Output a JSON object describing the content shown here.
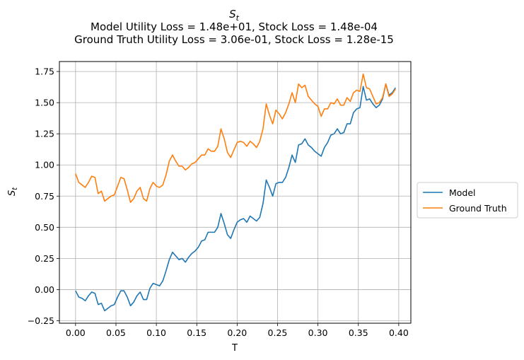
{
  "chart_data": {
    "type": "line",
    "title_symbol": "S",
    "title_subscript": "t",
    "subtitle_lines": [
      "Model Utility Loss = 1.48e+01, Stock Loss = 1.48e-04",
      "Ground Truth Utility Loss = 3.06e-01, Stock Loss = 1.28e-15"
    ],
    "xlabel": "T",
    "ylabel_symbol": "S",
    "ylabel_subscript": "t",
    "xlim": [
      -0.02,
      0.415
    ],
    "ylim": [
      -0.27,
      1.83
    ],
    "xticks": [
      0.0,
      0.05,
      0.1,
      0.15,
      0.2,
      0.25,
      0.3,
      0.35,
      0.4
    ],
    "xtick_labels": [
      "0.00",
      "0.05",
      "0.10",
      "0.15",
      "0.20",
      "0.25",
      "0.30",
      "0.35",
      "0.40"
    ],
    "yticks": [
      -0.25,
      0.0,
      0.25,
      0.5,
      0.75,
      1.0,
      1.25,
      1.5,
      1.75
    ],
    "ytick_labels": [
      "−0.25",
      "0.00",
      "0.25",
      "0.50",
      "0.75",
      "1.00",
      "1.25",
      "1.50",
      "1.75"
    ],
    "grid": true,
    "legend_position": "outside-right",
    "x": [
      0.0,
      0.004,
      0.008,
      0.012,
      0.016,
      0.02,
      0.024,
      0.028,
      0.032,
      0.036,
      0.04,
      0.044,
      0.048,
      0.052,
      0.056,
      0.06,
      0.064,
      0.068,
      0.072,
      0.076,
      0.08,
      0.084,
      0.088,
      0.092,
      0.096,
      0.1,
      0.104,
      0.108,
      0.112,
      0.116,
      0.12,
      0.124,
      0.128,
      0.132,
      0.136,
      0.14,
      0.144,
      0.148,
      0.152,
      0.156,
      0.16,
      0.164,
      0.168,
      0.172,
      0.176,
      0.18,
      0.184,
      0.188,
      0.192,
      0.196,
      0.2,
      0.204,
      0.208,
      0.212,
      0.216,
      0.22,
      0.224,
      0.228,
      0.232,
      0.236,
      0.24,
      0.244,
      0.248,
      0.252,
      0.256,
      0.26,
      0.264,
      0.268,
      0.272,
      0.276,
      0.28,
      0.284,
      0.288,
      0.292,
      0.296,
      0.3,
      0.304,
      0.308,
      0.312,
      0.316,
      0.32,
      0.324,
      0.328,
      0.332,
      0.336,
      0.34,
      0.344,
      0.348,
      0.352,
      0.356,
      0.36,
      0.364,
      0.368,
      0.372,
      0.376,
      0.38,
      0.384,
      0.388,
      0.392,
      0.396
    ],
    "series": [
      {
        "name": "Model",
        "color": "#1f77b4",
        "values": [
          -0.01,
          -0.06,
          -0.07,
          -0.09,
          -0.05,
          -0.02,
          -0.03,
          -0.12,
          -0.11,
          -0.17,
          -0.15,
          -0.13,
          -0.12,
          -0.06,
          -0.01,
          -0.01,
          -0.06,
          -0.13,
          -0.1,
          -0.05,
          -0.02,
          -0.08,
          -0.08,
          0.01,
          0.05,
          0.04,
          0.03,
          0.07,
          0.15,
          0.24,
          0.3,
          0.27,
          0.24,
          0.25,
          0.22,
          0.26,
          0.29,
          0.31,
          0.34,
          0.39,
          0.4,
          0.46,
          0.46,
          0.46,
          0.5,
          0.61,
          0.53,
          0.44,
          0.41,
          0.48,
          0.54,
          0.56,
          0.57,
          0.54,
          0.59,
          0.57,
          0.55,
          0.58,
          0.69,
          0.88,
          0.82,
          0.75,
          0.85,
          0.86,
          0.86,
          0.9,
          0.98,
          1.08,
          1.02,
          1.16,
          1.17,
          1.21,
          1.16,
          1.14,
          1.11,
          1.09,
          1.07,
          1.14,
          1.18,
          1.24,
          1.25,
          1.29,
          1.25,
          1.26,
          1.33,
          1.33,
          1.42,
          1.45,
          1.46,
          1.63,
          1.52,
          1.53,
          1.49,
          1.46,
          1.48,
          1.53,
          1.65,
          1.56,
          1.58,
          1.62
        ]
      },
      {
        "name": "Ground Truth",
        "color": "#ff7f0e",
        "values": [
          0.93,
          0.86,
          0.84,
          0.82,
          0.86,
          0.91,
          0.9,
          0.77,
          0.79,
          0.71,
          0.73,
          0.75,
          0.76,
          0.83,
          0.9,
          0.89,
          0.8,
          0.7,
          0.73,
          0.79,
          0.82,
          0.73,
          0.71,
          0.81,
          0.86,
          0.83,
          0.82,
          0.84,
          0.92,
          1.03,
          1.08,
          1.03,
          0.99,
          0.99,
          0.96,
          0.98,
          1.01,
          1.02,
          1.05,
          1.08,
          1.08,
          1.13,
          1.11,
          1.11,
          1.15,
          1.29,
          1.21,
          1.1,
          1.06,
          1.12,
          1.18,
          1.19,
          1.18,
          1.15,
          1.19,
          1.17,
          1.14,
          1.19,
          1.29,
          1.49,
          1.4,
          1.33,
          1.44,
          1.41,
          1.37,
          1.42,
          1.49,
          1.58,
          1.5,
          1.65,
          1.62,
          1.64,
          1.55,
          1.52,
          1.49,
          1.47,
          1.39,
          1.45,
          1.45,
          1.5,
          1.49,
          1.53,
          1.48,
          1.48,
          1.54,
          1.51,
          1.58,
          1.6,
          1.59,
          1.73,
          1.62,
          1.61,
          1.55,
          1.49,
          1.5,
          1.54,
          1.65,
          1.55,
          1.57,
          1.61
        ]
      }
    ]
  }
}
